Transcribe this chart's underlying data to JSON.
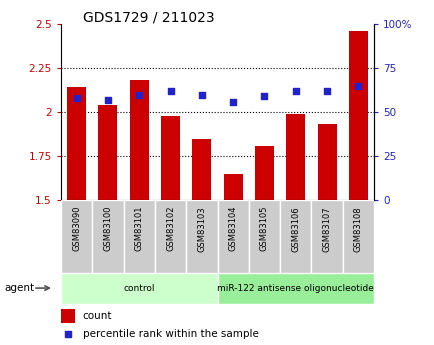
{
  "title": "GDS1729 / 211023",
  "samples": [
    "GSM83090",
    "GSM83100",
    "GSM83101",
    "GSM83102",
    "GSM83103",
    "GSM83104",
    "GSM83105",
    "GSM83106",
    "GSM83107",
    "GSM83108"
  ],
  "count_values": [
    2.14,
    2.04,
    2.18,
    1.98,
    1.85,
    1.65,
    1.81,
    1.99,
    1.93,
    2.46
  ],
  "percentile_values": [
    58,
    57,
    60,
    62,
    60,
    56,
    59,
    62,
    62,
    65
  ],
  "left_ylim": [
    1.5,
    2.5
  ],
  "right_ylim": [
    0,
    100
  ],
  "left_yticks": [
    1.5,
    1.75,
    2.0,
    2.25,
    2.5
  ],
  "right_yticks": [
    0,
    25,
    50,
    75,
    100
  ],
  "left_ytick_labels": [
    "1.5",
    "1.75",
    "2",
    "2.25",
    "2.5"
  ],
  "right_ytick_labels": [
    "0",
    "25",
    "50",
    "75",
    "100%"
  ],
  "bar_color": "#cc0000",
  "dot_color": "#2222cc",
  "bar_width": 0.6,
  "groups": [
    {
      "label": "control",
      "start": 0,
      "end": 5,
      "color": "#ccffcc"
    },
    {
      "label": "miR-122 antisense oligonucleotide",
      "start": 5,
      "end": 10,
      "color": "#99ee99"
    }
  ],
  "agent_label": "agent",
  "legend_count_label": "count",
  "legend_percentile_label": "percentile rank within the sample",
  "axis_color_left": "#cc0000",
  "axis_color_right": "#2222cc",
  "sample_box_color": "#cccccc",
  "sample_box_edge": "#aaaaaa"
}
